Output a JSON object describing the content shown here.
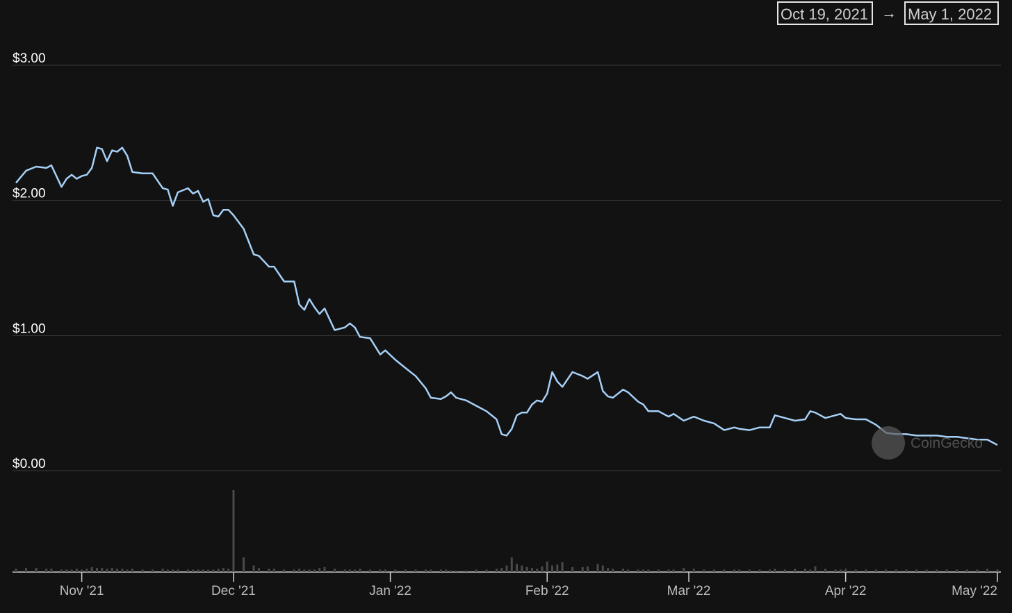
{
  "chart_data": {
    "type": "line",
    "range_start": "Oct 19, 2021",
    "range_separator": "→",
    "range_end": "May 1, 2022",
    "watermark": "CoinGecko",
    "x": [
      "2021-10-19",
      "2021-10-21",
      "2021-10-23",
      "2021-10-25",
      "2021-10-26",
      "2021-10-28",
      "2021-10-29",
      "2021-10-30",
      "2021-10-31",
      "2021-11-01",
      "2021-11-02",
      "2021-11-03",
      "2021-11-04",
      "2021-11-05",
      "2021-11-06",
      "2021-11-07",
      "2021-11-08",
      "2021-11-09",
      "2021-11-10",
      "2021-11-11",
      "2021-11-13",
      "2021-11-15",
      "2021-11-17",
      "2021-11-18",
      "2021-11-19",
      "2021-11-20",
      "2021-11-22",
      "2021-11-23",
      "2021-11-24",
      "2021-11-25",
      "2021-11-26",
      "2021-11-27",
      "2021-11-28",
      "2021-11-29",
      "2021-11-30",
      "2021-12-01",
      "2021-12-03",
      "2021-12-05",
      "2021-12-06",
      "2021-12-08",
      "2021-12-09",
      "2021-12-11",
      "2021-12-13",
      "2021-12-14",
      "2021-12-15",
      "2021-12-16",
      "2021-12-17",
      "2021-12-18",
      "2021-12-19",
      "2021-12-21",
      "2021-12-23",
      "2021-12-24",
      "2021-12-25",
      "2021-12-26",
      "2021-12-28",
      "2021-12-30",
      "2021-12-31",
      "2022-01-02",
      "2022-01-04",
      "2022-01-06",
      "2022-01-08",
      "2022-01-09",
      "2022-01-11",
      "2022-01-12",
      "2022-01-13",
      "2022-01-14",
      "2022-01-16",
      "2022-01-18",
      "2022-01-20",
      "2022-01-22",
      "2022-01-23",
      "2022-01-24",
      "2022-01-25",
      "2022-01-26",
      "2022-01-27",
      "2022-01-28",
      "2022-01-29",
      "2022-01-30",
      "2022-01-31",
      "2022-02-01",
      "2022-02-02",
      "2022-02-03",
      "2022-02-04",
      "2022-02-06",
      "2022-02-08",
      "2022-02-09",
      "2022-02-11",
      "2022-02-12",
      "2022-02-13",
      "2022-02-14",
      "2022-02-16",
      "2022-02-17",
      "2022-02-19",
      "2022-02-20",
      "2022-02-21",
      "2022-02-23",
      "2022-02-25",
      "2022-02-26",
      "2022-02-28",
      "2022-03-02",
      "2022-03-04",
      "2022-03-06",
      "2022-03-08",
      "2022-03-10",
      "2022-03-11",
      "2022-03-13",
      "2022-03-15",
      "2022-03-17",
      "2022-03-18",
      "2022-03-20",
      "2022-03-22",
      "2022-03-24",
      "2022-03-25",
      "2022-03-26",
      "2022-03-28",
      "2022-03-30",
      "2022-03-31",
      "2022-04-01",
      "2022-04-03",
      "2022-04-05",
      "2022-04-07",
      "2022-04-09",
      "2022-04-11",
      "2022-04-13",
      "2022-04-15",
      "2022-04-17",
      "2022-04-19",
      "2022-04-21",
      "2022-04-23",
      "2022-04-25",
      "2022-04-27",
      "2022-04-29",
      "2022-05-01"
    ],
    "series": [
      {
        "color": "#a6d0f7",
        "values": [
          2.13,
          2.22,
          2.25,
          2.24,
          2.26,
          2.1,
          2.16,
          2.19,
          2.16,
          2.18,
          2.19,
          2.24,
          2.39,
          2.38,
          2.29,
          2.37,
          2.36,
          2.39,
          2.33,
          2.21,
          2.2,
          2.2,
          2.09,
          2.08,
          1.96,
          2.06,
          2.09,
          2.05,
          2.07,
          1.99,
          2.01,
          1.89,
          1.88,
          1.93,
          1.93,
          1.89,
          1.79,
          1.6,
          1.59,
          1.51,
          1.51,
          1.4,
          1.4,
          1.23,
          1.19,
          1.27,
          1.21,
          1.16,
          1.2,
          1.04,
          1.06,
          1.09,
          1.06,
          0.99,
          0.98,
          0.86,
          0.89,
          0.82,
          0.76,
          0.7,
          0.61,
          0.54,
          0.53,
          0.55,
          0.58,
          0.54,
          0.52,
          0.48,
          0.44,
          0.38,
          0.27,
          0.26,
          0.31,
          0.41,
          0.43,
          0.43,
          0.49,
          0.52,
          0.51,
          0.57,
          0.73,
          0.66,
          0.62,
          0.73,
          0.7,
          0.68,
          0.73,
          0.59,
          0.55,
          0.54,
          0.6,
          0.58,
          0.51,
          0.49,
          0.44,
          0.44,
          0.4,
          0.42,
          0.37,
          0.4,
          0.37,
          0.35,
          0.3,
          0.32,
          0.31,
          0.3,
          0.32,
          0.32,
          0.41,
          0.39,
          0.37,
          0.38,
          0.44,
          0.43,
          0.39,
          0.41,
          0.42,
          0.39,
          0.38,
          0.38,
          0.34,
          0.28,
          0.27,
          0.27,
          0.26,
          0.26,
          0.26,
          0.25,
          0.25,
          0.24,
          0.23,
          0.23,
          0.19
        ]
      },
      {
        "type": "bar",
        "axis": "y2",
        "color": "#4a4a4a",
        "values": [
          4,
          5,
          5,
          4,
          4,
          3,
          3,
          3,
          4,
          3,
          4,
          6,
          5,
          5,
          4,
          5,
          4,
          4,
          3,
          4,
          3,
          3,
          4,
          3,
          3,
          3,
          3,
          3,
          3,
          3,
          3,
          3,
          4,
          5,
          4,
          100,
          18,
          8,
          5,
          4,
          4,
          3,
          3,
          4,
          3,
          3,
          3,
          5,
          6,
          4,
          3,
          3,
          3,
          4,
          3,
          3,
          3,
          3,
          3,
          3,
          3,
          3,
          3,
          3,
          2,
          2,
          2,
          3,
          3,
          4,
          5,
          8,
          18,
          10,
          8,
          6,
          5,
          4,
          7,
          13,
          8,
          9,
          12,
          6,
          6,
          7,
          10,
          8,
          5,
          4,
          4,
          3,
          3,
          3,
          3,
          3,
          3,
          3,
          5,
          4,
          3,
          3,
          3,
          3,
          3,
          3,
          3,
          3,
          4,
          3,
          4,
          4,
          3,
          7,
          4,
          3,
          3,
          4,
          3,
          3,
          3,
          3,
          3,
          3,
          3,
          3,
          3,
          3,
          3,
          3,
          3,
          4,
          3
        ]
      }
    ],
    "xlim": [
      "2021-10-19",
      "2022-05-01"
    ],
    "xticks": [
      {
        "value": "2021-11-01",
        "label": "Nov '21"
      },
      {
        "value": "2021-12-01",
        "label": "Dec '21"
      },
      {
        "value": "2022-01-01",
        "label": "Jan '22"
      },
      {
        "value": "2022-02-01",
        "label": "Feb '22"
      },
      {
        "value": "2022-03-01",
        "label": "Mar '22"
      },
      {
        "value": "2022-04-01",
        "label": "Apr '22"
      },
      {
        "value": "2022-05-01",
        "label": "May '22"
      }
    ],
    "ylim": [
      0,
      3
    ],
    "yticks": [
      {
        "value": 0,
        "label": "$0.00"
      },
      {
        "value": 1,
        "label": "$1.00"
      },
      {
        "value": 2,
        "label": "$2.00"
      },
      {
        "value": 3,
        "label": "$3.00"
      }
    ],
    "y2lim": [
      0,
      100
    ],
    "grid": true
  }
}
